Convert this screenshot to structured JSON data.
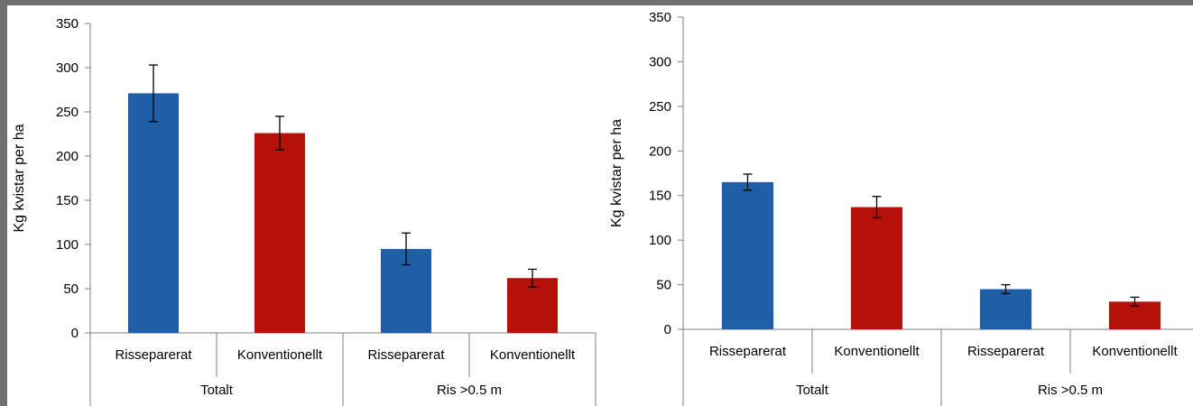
{
  "chart_data": [
    {
      "type": "bar",
      "ylabel": "Kg kvistar per ha",
      "ylim": [
        0,
        350
      ],
      "yticks": [
        "0",
        "50",
        "100",
        "150",
        "200",
        "250",
        "300",
        "350"
      ],
      "groups": [
        "Totalt",
        "Ris >0.5 m"
      ],
      "categories": [
        "Risseparerat",
        "Konventionellt",
        "Risseparerat",
        "Konventionellt"
      ],
      "values": [
        271,
        226,
        95,
        62
      ],
      "errors": [
        32,
        19,
        18,
        10
      ],
      "colors": [
        "#1f5fa8",
        "#b41208",
        "#1f5fa8",
        "#b41208"
      ],
      "grid": false
    },
    {
      "type": "bar",
      "ylabel": "Kg kvistar per ha",
      "ylim": [
        0,
        350
      ],
      "yticks": [
        "0",
        "50",
        "100",
        "150",
        "200",
        "250",
        "300",
        "350"
      ],
      "groups": [
        "Totalt",
        "Ris >0.5 m"
      ],
      "categories": [
        "Risseparerat",
        "Konventionellt",
        "Risseparerat",
        "Konventionellt"
      ],
      "values": [
        165,
        137,
        45,
        31
      ],
      "errors": [
        9,
        12,
        5,
        5
      ],
      "colors": [
        "#1f5fa8",
        "#b41208",
        "#1f5fa8",
        "#b41208"
      ],
      "grid": false
    }
  ]
}
